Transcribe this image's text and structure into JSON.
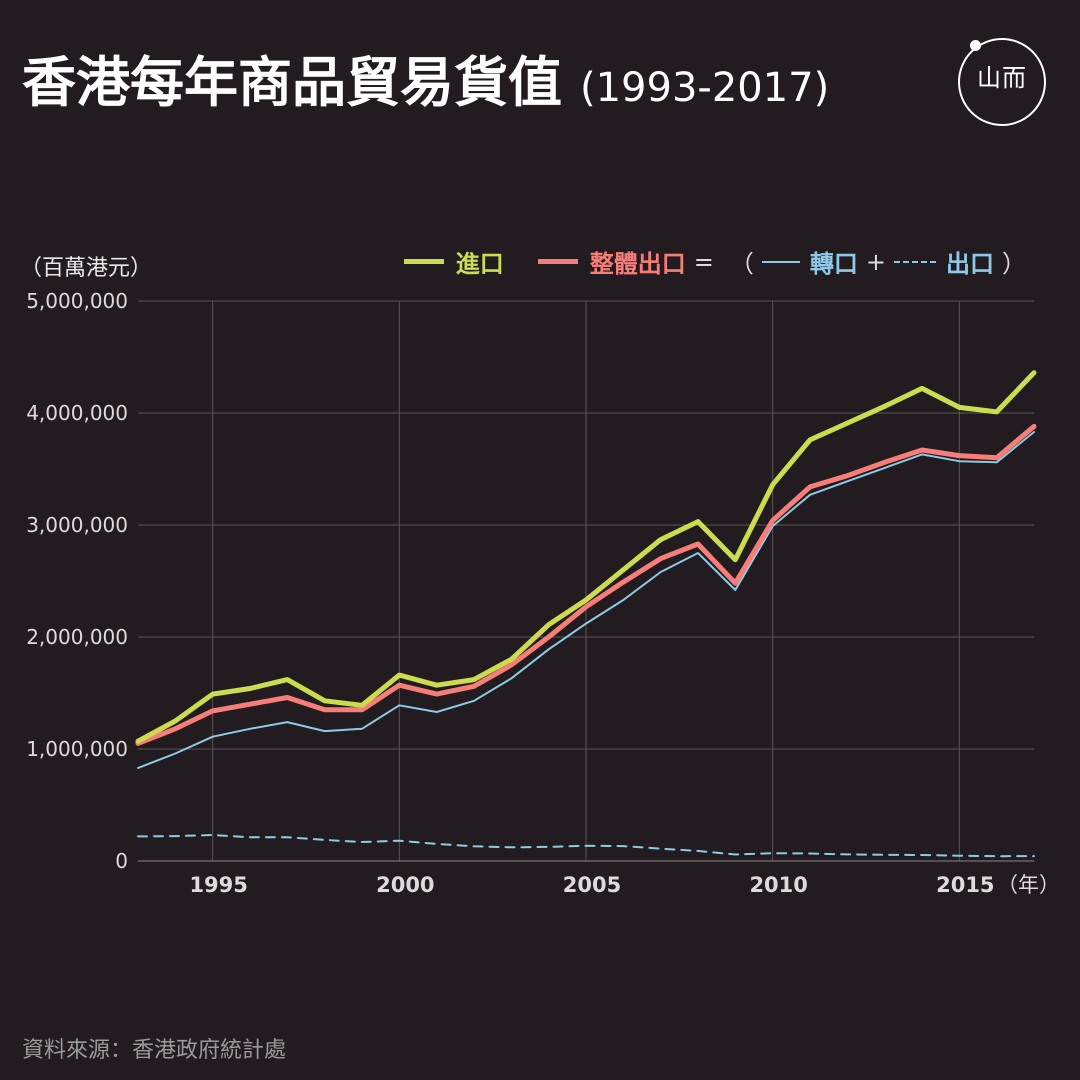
{
  "title": "香港每年商品貿易貨值",
  "title_years": "(1993-2017)",
  "logo": {
    "text": "山而",
    "icon": "initium-logo-icon"
  },
  "unit_label": "（百萬港元）",
  "legend": {
    "imports": "進口",
    "total_exports": "整體出口",
    "equals": "=",
    "open_paren": "（",
    "reexports": "轉口",
    "plus": "+",
    "domestic_exports": "出口",
    "close_paren": "）"
  },
  "source": "資料來源：香港政府統計處",
  "colors": {
    "background": "#221c20",
    "imports": "#cddc4f",
    "total_exports": "#f77e78",
    "reexports": "#8ecae6",
    "domestic_exports": "#8ecae6",
    "grid": "#5b5356"
  },
  "chart_data": {
    "type": "line",
    "x": [
      1993,
      1994,
      1995,
      1996,
      1997,
      1998,
      1999,
      2000,
      2001,
      2002,
      2003,
      2004,
      2005,
      2006,
      2007,
      2008,
      2009,
      2010,
      2011,
      2012,
      2013,
      2014,
      2015,
      2016,
      2017
    ],
    "x_axis_label": "（年）",
    "x_ticks": [
      1995,
      2000,
      2005,
      2010,
      2015
    ],
    "ylim": [
      0,
      5000000
    ],
    "y_ticks": [
      0,
      1000000,
      2000000,
      3000000,
      4000000,
      5000000
    ],
    "y_tick_labels": [
      "0",
      "1,000,000",
      "2,000,000",
      "3,000,000",
      "4,000,000",
      "5,000,000"
    ],
    "grid": true,
    "legend_position": "top-right",
    "series": [
      {
        "name": "進口",
        "key": "imports",
        "style": "thick",
        "values": [
          1070000,
          1250000,
          1490000,
          1540000,
          1620000,
          1430000,
          1390000,
          1660000,
          1570000,
          1620000,
          1800000,
          2110000,
          2330000,
          2600000,
          2870000,
          3030000,
          2690000,
          3360000,
          3760000,
          3910000,
          4060000,
          4220000,
          4050000,
          4010000,
          4360000
        ]
      },
      {
        "name": "整體出口",
        "key": "total_exports",
        "style": "thick",
        "values": [
          1050000,
          1180000,
          1340000,
          1400000,
          1460000,
          1350000,
          1350000,
          1570000,
          1490000,
          1560000,
          1750000,
          2000000,
          2270000,
          2490000,
          2700000,
          2830000,
          2480000,
          3040000,
          3340000,
          3440000,
          3560000,
          3670000,
          3620000,
          3600000,
          3880000
        ]
      },
      {
        "name": "轉口",
        "key": "reexports",
        "style": "thin",
        "values": [
          830000,
          960000,
          1110000,
          1180000,
          1240000,
          1160000,
          1180000,
          1390000,
          1330000,
          1430000,
          1630000,
          1890000,
          2120000,
          2330000,
          2580000,
          2750000,
          2420000,
          2990000,
          3270000,
          3390000,
          3510000,
          3630000,
          3570000,
          3560000,
          3830000
        ]
      },
      {
        "name": "出口",
        "key": "domestic_exports",
        "style": "dashed",
        "values": [
          220000,
          222000,
          232000,
          212000,
          212000,
          188000,
          170000,
          181000,
          153000,
          131000,
          122000,
          126000,
          136000,
          133000,
          110000,
          90000,
          58000,
          70000,
          67000,
          59000,
          55000,
          54000,
          47000,
          43000,
          44000
        ]
      }
    ]
  }
}
